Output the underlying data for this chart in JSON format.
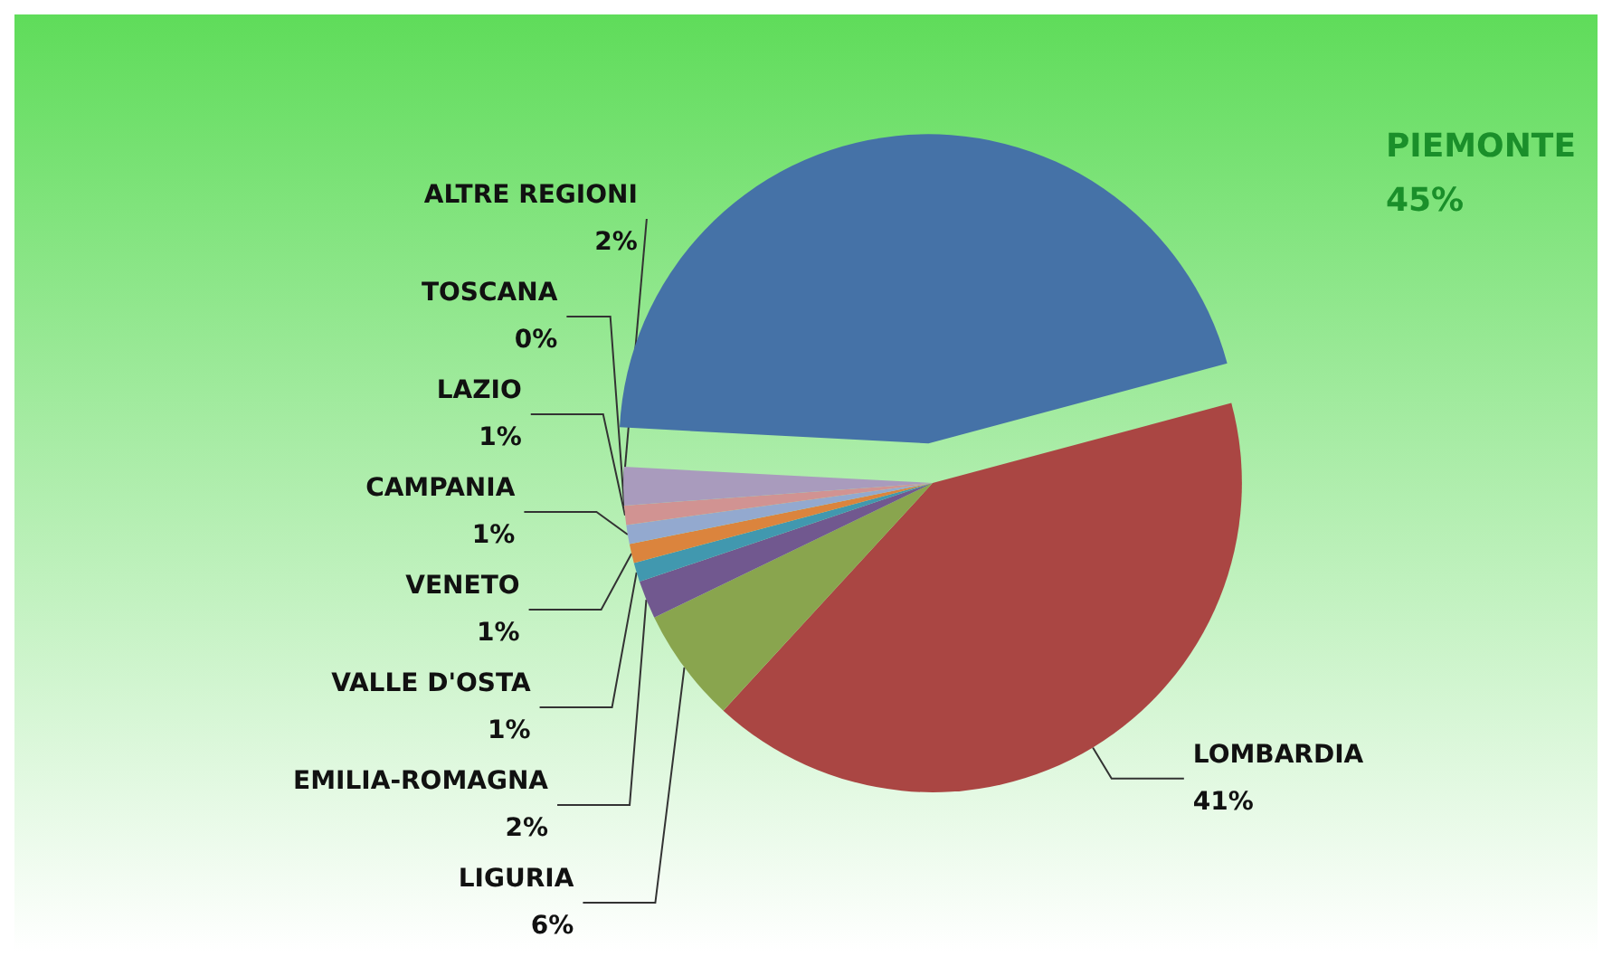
{
  "chart_data": {
    "type": "pie",
    "categories": [
      "PIEMONTE",
      "LOMBARDIA",
      "LIGURIA",
      "EMILIA-ROMAGNA",
      "VALLE D'OSTA",
      "VENETO",
      "CAMPANIA",
      "LAZIO",
      "TOSCANA",
      "ALTRE REGIONI"
    ],
    "values": [
      45,
      41,
      6,
      2,
      1,
      1,
      1,
      1,
      0,
      2
    ],
    "value_labels": [
      "45%",
      "41%",
      "6%",
      "2%",
      "1%",
      "1%",
      "1%",
      "1%",
      "0%",
      "2%"
    ],
    "colors": [
      "#4572a7",
      "#aa4643",
      "#89a54e",
      "#71588f",
      "#4198af",
      "#db843d",
      "#93a9cf",
      "#d19392",
      "#b9cd96",
      "#a99bbd"
    ],
    "legend": false
  }
}
